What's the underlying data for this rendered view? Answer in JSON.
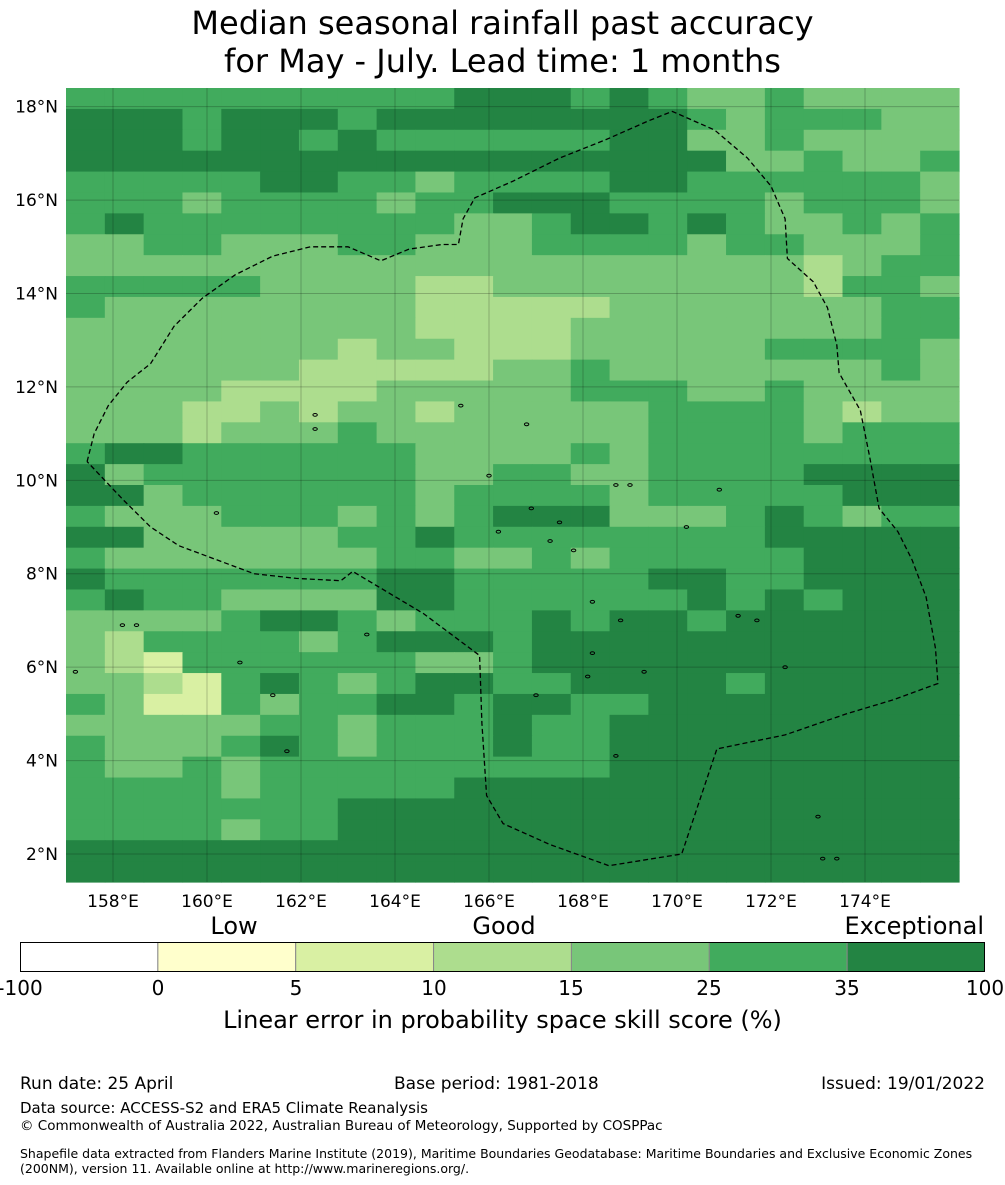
{
  "title": {
    "line1": "Median seasonal rainfall past accuracy",
    "line2": "for May - July. Lead time: 1 months"
  },
  "map": {
    "lon_range": [
      157,
      176
    ],
    "lat_range": [
      1.4,
      18.4
    ],
    "lat_ticks": [
      {
        "value": 18,
        "label": "18°N"
      },
      {
        "value": 16,
        "label": "16°N"
      },
      {
        "value": 14,
        "label": "14°N"
      },
      {
        "value": 12,
        "label": "12°N"
      },
      {
        "value": 10,
        "label": "10°N"
      },
      {
        "value": 8,
        "label": "8°N"
      },
      {
        "value": 6,
        "label": "6°N"
      },
      {
        "value": 4,
        "label": "4°N"
      },
      {
        "value": 2,
        "label": "2°N"
      }
    ],
    "lon_ticks": [
      {
        "value": 158,
        "label": "158°E"
      },
      {
        "value": 160,
        "label": "160°E"
      },
      {
        "value": 162,
        "label": "162°E"
      },
      {
        "value": 164,
        "label": "164°E"
      },
      {
        "value": 166,
        "label": "166°E"
      },
      {
        "value": 168,
        "label": "168°E"
      },
      {
        "value": 170,
        "label": "170°E"
      },
      {
        "value": 172,
        "label": "172°E"
      },
      {
        "value": 174,
        "label": "174°E"
      }
    ],
    "grid_lines": true,
    "skill_grid": {
      "note_classes": "1: 5-10, 2: 10-15, 3: 15-25, 4: 25-35, 5: 35-100",
      "rows_north_to_south": [
        "44444444445554543343333",
        "55545554555555554344433",
        "55545545444444553343333",
        "55555555555555555334334",
        "44444554434444554444443",
        "44434444344555444434443",
        "45444444443345545433434",
        "33443334433344443443334",
        "33333333333333333332344",
        "44444333322333333332443",
        "43333333322222333333344",
        "33333333322223333333344",
        "33333332332223333344443",
        "33333322222334333333343",
        "33332222333334443343333",
        "33322323323333344443233",
        "33323334333333344443444",
        "45544444433334344444444",
        "53444444433443344445555",
        "55344444434444344444555",
        "43334443434555333454344",
        "55333334454444444455555",
        "43333333443343444445555",
        "54444444554444455445555",
        "45443333554444445454555",
        "33334554344454554555555",
        "32444434555455555555555",
        "32144444433455555555555",
        "33214543455445555455555",
        "43114344554554455555555",
        "33333443444544555555555",
        "43334543444544555555555",
        "43343444444444555555555",
        "44443444445555555555555",
        "44444445555555555555555",
        "44443445555555555555555",
        "55555555555555555555555",
        "55555555555555555555555"
      ]
    },
    "colors": {
      "white": "#ffffff",
      "c0": "#ffffcc",
      "c1": "#d9f0a3",
      "c2": "#addd8e",
      "c3": "#78c679",
      "c4": "#41ab5d",
      "c5": "#238443"
    },
    "eez_boundary": [
      [
        157.45,
        10.4
      ],
      [
        157.6,
        11.0
      ],
      [
        157.9,
        11.6
      ],
      [
        158.3,
        12.1
      ],
      [
        158.8,
        12.5
      ],
      [
        159.3,
        13.3
      ],
      [
        159.9,
        13.9
      ],
      [
        160.6,
        14.4
      ],
      [
        161.4,
        14.8
      ],
      [
        162.2,
        15.0
      ],
      [
        163.0,
        15.0
      ],
      [
        163.7,
        14.7
      ],
      [
        164.3,
        14.95
      ],
      [
        165.0,
        15.05
      ],
      [
        165.35,
        15.05
      ],
      [
        165.45,
        15.6
      ],
      [
        165.7,
        16.05
      ],
      [
        166.5,
        16.4
      ],
      [
        167.5,
        16.9
      ],
      [
        168.5,
        17.3
      ],
      [
        169.4,
        17.7
      ],
      [
        169.9,
        17.9
      ],
      [
        170.8,
        17.5
      ],
      [
        171.5,
        16.9
      ],
      [
        172.0,
        16.3
      ],
      [
        172.3,
        15.6
      ],
      [
        172.35,
        14.75
      ],
      [
        172.9,
        14.25
      ],
      [
        173.2,
        13.7
      ],
      [
        173.4,
        12.9
      ],
      [
        173.45,
        12.3
      ],
      [
        173.9,
        11.5
      ],
      [
        174.1,
        10.5
      ],
      [
        174.3,
        9.4
      ],
      [
        174.7,
        8.9
      ],
      [
        175.0,
        8.3
      ],
      [
        175.3,
        7.5
      ],
      [
        175.5,
        6.4
      ],
      [
        175.55,
        5.65
      ],
      [
        174.6,
        5.3
      ],
      [
        173.6,
        5.0
      ],
      [
        172.3,
        4.55
      ],
      [
        170.85,
        4.25
      ],
      [
        170.1,
        2.0
      ],
      [
        168.55,
        1.75
      ],
      [
        167.3,
        2.2
      ],
      [
        166.3,
        2.65
      ],
      [
        165.95,
        3.25
      ],
      [
        165.85,
        4.8
      ],
      [
        165.8,
        6.25
      ],
      [
        164.6,
        7.15
      ],
      [
        163.1,
        8.05
      ],
      [
        162.85,
        7.85
      ],
      [
        161.9,
        7.9
      ],
      [
        161.0,
        8.0
      ],
      [
        160.2,
        8.3
      ],
      [
        159.4,
        8.6
      ],
      [
        158.8,
        9.0
      ],
      [
        158.2,
        9.6
      ],
      [
        157.45,
        10.4
      ]
    ],
    "islands": [
      [
        158.2,
        6.9
      ],
      [
        161.7,
        4.2
      ],
      [
        158.5,
        6.9
      ],
      [
        160.7,
        6.1
      ],
      [
        160.2,
        9.3
      ],
      [
        162.3,
        11.4
      ],
      [
        162.3,
        11.1
      ],
      [
        165.4,
        11.6
      ],
      [
        166.8,
        11.2
      ],
      [
        166.0,
        10.1
      ],
      [
        169.0,
        9.9
      ],
      [
        168.7,
        9.9
      ],
      [
        166.2,
        8.9
      ],
      [
        166.9,
        9.4
      ],
      [
        167.5,
        9.1
      ],
      [
        167.8,
        8.5
      ],
      [
        168.2,
        7.4
      ],
      [
        168.8,
        7.0
      ],
      [
        171.3,
        7.1
      ],
      [
        171.7,
        7.0
      ],
      [
        172.3,
        6.0
      ],
      [
        170.2,
        9.0
      ],
      [
        167.0,
        5.4
      ],
      [
        168.1,
        5.8
      ],
      [
        168.7,
        4.1
      ],
      [
        169.3,
        5.9
      ],
      [
        170.9,
        9.8
      ],
      [
        157.2,
        5.9
      ],
      [
        161.4,
        5.4
      ],
      [
        173.0,
        2.8
      ],
      [
        173.1,
        1.9
      ],
      [
        173.4,
        1.9
      ],
      [
        168.2,
        6.3
      ],
      [
        163.4,
        6.7
      ],
      [
        167.3,
        8.7
      ]
    ]
  },
  "colorbar": {
    "category_labels": [
      "Low",
      "Good",
      "Exceptional"
    ],
    "bounds": [
      "-100",
      "0",
      "5",
      "10",
      "15",
      "25",
      "35",
      "100"
    ],
    "label": "Linear error in probability space skill score (%)"
  },
  "footer": {
    "run_date": "Run date: 25 April",
    "base_period": "Base period: 1981-2018",
    "issued": "Issued: 19/01/2022",
    "data_source": "Data source: ACCESS-S2 and ERA5 Climate Reanalysis",
    "copyright": "© Commonwealth of Australia 2022, Australian Bureau of Meteorology, Supported by COSPPac",
    "shapefile": "Shapefile data extracted from Flanders Marine Institute (2019), Maritime Boundaries Geodatabase: Maritime Boundaries and Exclusive Economic Zones (200NM), version 11. Available online at http://www.marineregions.org/."
  }
}
